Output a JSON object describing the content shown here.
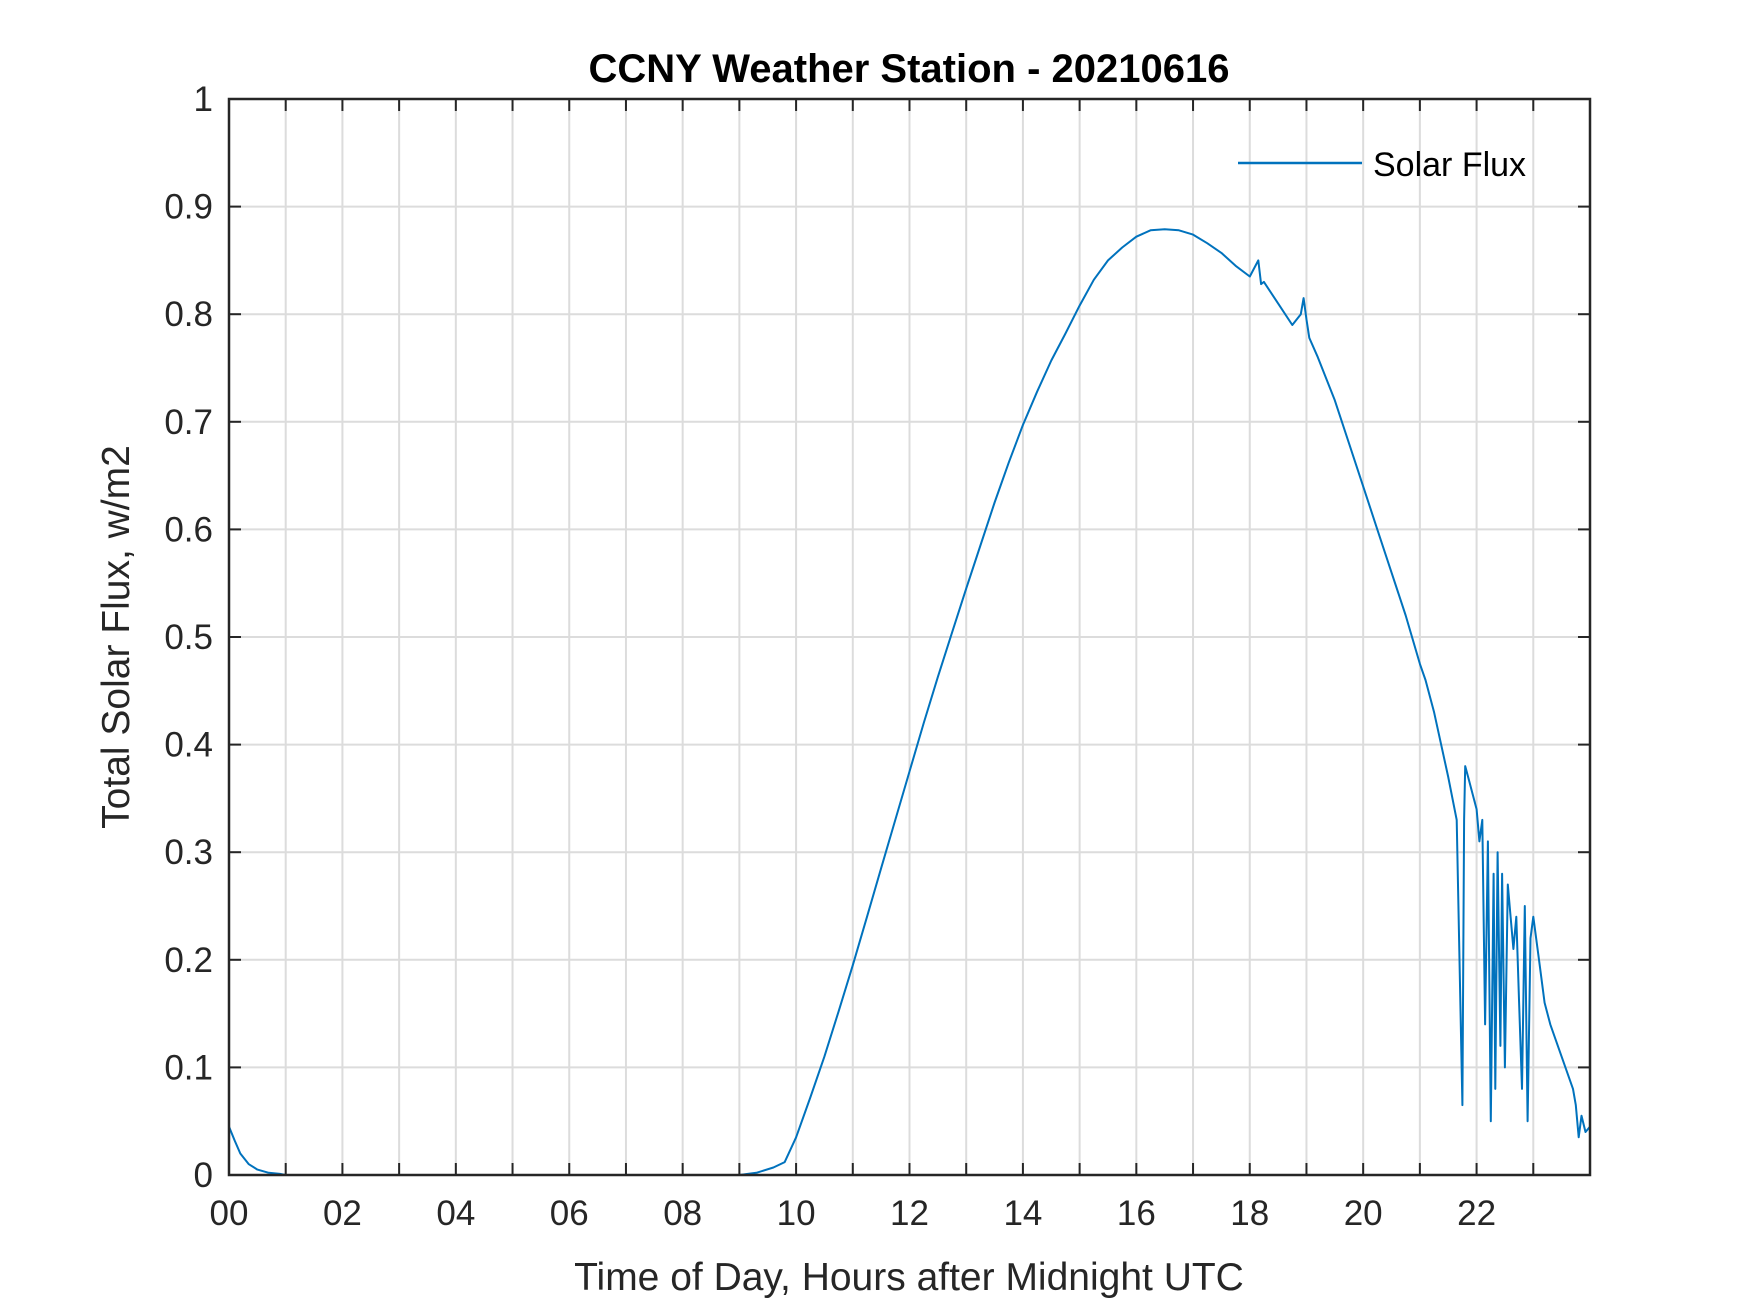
{
  "chart_data": {
    "type": "line",
    "title": "CCNY Weather Station - 20210616",
    "xlabel": "Time of Day, Hours after Midnight UTC",
    "ylabel": "Total Solar Flux, w/m2",
    "xlim": [
      0,
      24
    ],
    "ylim": [
      0,
      1
    ],
    "xticks": [
      0,
      2,
      4,
      6,
      8,
      10,
      12,
      14,
      16,
      18,
      20,
      22
    ],
    "xtick_labels": [
      "00",
      "02",
      "04",
      "06",
      "08",
      "10",
      "12",
      "14",
      "16",
      "18",
      "20",
      "22"
    ],
    "yticks": [
      0,
      0.1,
      0.2,
      0.3,
      0.4,
      0.5,
      0.6,
      0.7,
      0.8,
      0.9,
      1
    ],
    "ytick_labels": [
      "0",
      "0.1",
      "0.2",
      "0.3",
      "0.4",
      "0.5",
      "0.6",
      "0.7",
      "0.8",
      "0.9",
      "1"
    ],
    "grid": true,
    "legend_position": "top-right",
    "series": [
      {
        "name": "Solar Flux",
        "color": "#0072bd",
        "x": [
          0,
          0.1,
          0.2,
          0.35,
          0.5,
          0.7,
          0.9,
          1.0,
          2.0,
          4.0,
          6.0,
          8.0,
          9.0,
          9.3,
          9.6,
          9.8,
          10.0,
          10.25,
          10.5,
          10.75,
          11.0,
          11.25,
          11.5,
          11.75,
          12.0,
          12.25,
          12.5,
          12.75,
          13.0,
          13.25,
          13.5,
          13.75,
          14.0,
          14.25,
          14.5,
          14.75,
          15.0,
          15.25,
          15.5,
          15.75,
          16.0,
          16.25,
          16.5,
          16.75,
          17.0,
          17.25,
          17.5,
          17.75,
          18.0,
          18.15,
          18.2,
          18.25,
          18.5,
          18.75,
          18.9,
          18.95,
          19.0,
          19.05,
          19.2,
          19.5,
          19.75,
          20.0,
          20.25,
          20.5,
          20.75,
          21.0,
          21.1,
          21.25,
          21.5,
          21.65,
          21.75,
          21.78,
          21.8,
          21.85,
          22.0,
          22.05,
          22.1,
          22.15,
          22.2,
          22.25,
          22.3,
          22.33,
          22.37,
          22.42,
          22.45,
          22.5,
          22.55,
          22.6,
          22.65,
          22.7,
          22.75,
          22.8,
          22.85,
          22.9,
          22.95,
          23.0,
          23.1,
          23.2,
          23.3,
          23.5,
          23.7,
          23.75,
          23.8,
          23.85,
          23.92,
          24.0
        ],
        "y": [
          0.045,
          0.032,
          0.02,
          0.01,
          0.005,
          0.002,
          0.001,
          0,
          0,
          0,
          0,
          0,
          0,
          0.002,
          0.007,
          0.012,
          0.035,
          0.072,
          0.11,
          0.152,
          0.195,
          0.24,
          0.285,
          0.33,
          0.375,
          0.42,
          0.463,
          0.504,
          0.545,
          0.585,
          0.625,
          0.662,
          0.697,
          0.728,
          0.757,
          0.782,
          0.808,
          0.832,
          0.85,
          0.862,
          0.872,
          0.878,
          0.879,
          0.878,
          0.874,
          0.866,
          0.857,
          0.845,
          0.835,
          0.85,
          0.828,
          0.83,
          0.81,
          0.79,
          0.8,
          0.815,
          0.795,
          0.778,
          0.76,
          0.72,
          0.68,
          0.64,
          0.6,
          0.56,
          0.52,
          0.475,
          0.46,
          0.43,
          0.37,
          0.33,
          0.065,
          0.33,
          0.38,
          0.37,
          0.34,
          0.31,
          0.33,
          0.14,
          0.31,
          0.05,
          0.28,
          0.08,
          0.3,
          0.12,
          0.28,
          0.1,
          0.27,
          0.24,
          0.21,
          0.24,
          0.16,
          0.08,
          0.25,
          0.05,
          0.22,
          0.24,
          0.2,
          0.16,
          0.14,
          0.11,
          0.08,
          0.065,
          0.035,
          0.055,
          0.04,
          0.045
        ]
      }
    ]
  }
}
